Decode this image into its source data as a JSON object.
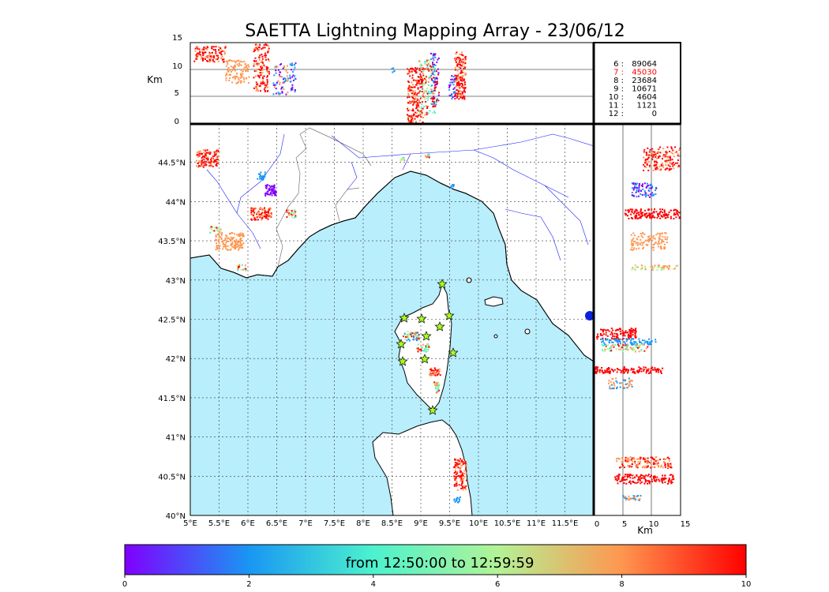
{
  "title": "SAETTA Lightning Mapping Array - 23/06/12",
  "height_panel": {
    "ylabel": "Km",
    "yticks": [
      "15",
      "10",
      "5",
      "0"
    ]
  },
  "map": {
    "lon_ticks": [
      "5°E",
      "5.5°E",
      "6°E",
      "6.5°E",
      "7°E",
      "7.5°E",
      "8°E",
      "8.5°E",
      "9°E",
      "9.5°E",
      "10°E",
      "10.5°E",
      "11°E",
      "11.5°E"
    ],
    "lat_ticks": [
      "44.5°N",
      "44°N",
      "43.5°N",
      "43°N",
      "42.5°N",
      "42°N",
      "41.5°N",
      "41°N",
      "40.5°N",
      "40°N"
    ],
    "sea_color": "#b9eefc",
    "land_color": "#ffffff",
    "river_color": "#1a1aff",
    "station_marker_color": "#a8ff1a"
  },
  "right_panel": {
    "xlabel": "Km",
    "xticks": [
      "0",
      "5",
      "10",
      "15"
    ]
  },
  "counts": [
    {
      "label": "6 :",
      "value": "89064",
      "highlight": false
    },
    {
      "label": "7 :",
      "value": "45030",
      "highlight": true
    },
    {
      "label": "8 :",
      "value": "23684",
      "highlight": false
    },
    {
      "label": "9 :",
      "value": "10671",
      "highlight": false
    },
    {
      "label": "10 :",
      "value": "4604",
      "highlight": false
    },
    {
      "label": "11 :",
      "value": "1121",
      "highlight": false
    },
    {
      "label": "12 :",
      "value": "0",
      "highlight": false
    }
  ],
  "counts_highlight_color": "#ff0000",
  "colorbar": {
    "text": "from 12:50:00 to 12:59:59",
    "ticks": [
      "0",
      "2",
      "4",
      "6",
      "8",
      "10"
    ],
    "colors": [
      "#8000ff",
      "#1996f3",
      "#4cf2ce",
      "#b2f396",
      "#ff964f",
      "#ff0000"
    ]
  }
}
